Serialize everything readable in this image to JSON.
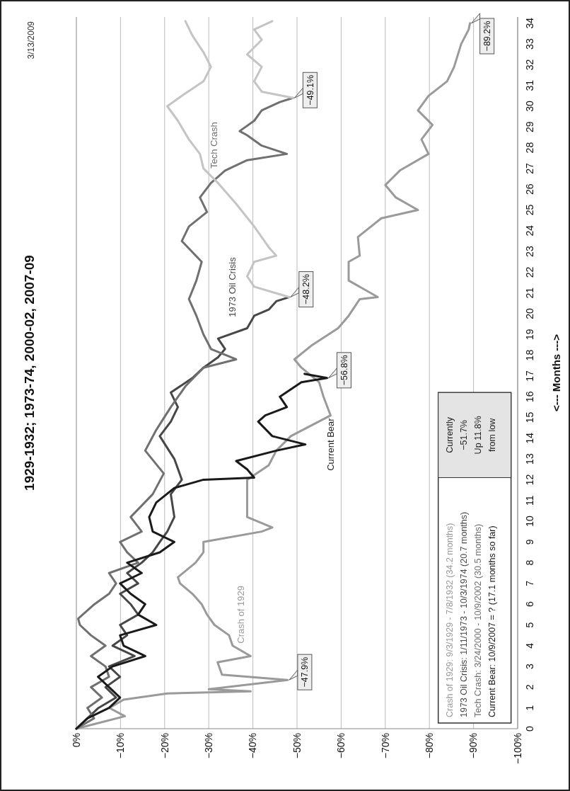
{
  "chart_data": {
    "type": "line",
    "title": "1929-1932; 1973-74, 2000-02, 2007-09",
    "ylabel": "<--- Months --->",
    "ylim": [
      0,
      34.3
    ],
    "yticks": [
      0,
      1,
      2,
      3,
      4,
      5,
      6,
      7,
      8,
      9,
      10,
      11,
      12,
      13,
      14,
      15,
      16,
      17,
      18,
      19,
      20,
      21,
      22,
      23,
      24,
      25,
      26,
      27,
      28,
      29,
      30,
      31,
      32,
      33,
      34
    ],
    "xlim": [
      0,
      -100
    ],
    "xticks": [
      {
        "value": 0,
        "label": "0%"
      },
      {
        "value": -10,
        "label": "−10%"
      },
      {
        "value": -20,
        "label": "−20%"
      },
      {
        "value": -30,
        "label": "−30%"
      },
      {
        "value": -40,
        "label": "−40%"
      },
      {
        "value": -50,
        "label": "−50%"
      },
      {
        "value": -60,
        "label": "−60%"
      },
      {
        "value": -70,
        "label": "−70%"
      },
      {
        "value": -80,
        "label": "−80%"
      },
      {
        "value": -90,
        "label": "−90%"
      },
      {
        "value": -100,
        "label": "−100%"
      }
    ],
    "grid": "x",
    "legend": false,
    "marker": "none",
    "line_style": "solid",
    "series": [
      {
        "name": "Crash of 1929",
        "color": "#9a9a9a",
        "values": [
          0,
          0.6,
          1,
          1.4,
          1.7,
          1.8,
          1.9,
          2.35,
          2.6,
          3.2,
          3.5,
          4,
          4.5,
          5,
          5.5,
          6,
          6.5,
          7,
          7.3,
          8,
          8.5,
          9,
          9.5,
          9.7,
          10.2,
          12,
          12.7,
          13.4,
          14.1,
          15.1,
          16,
          16.7,
          17.4,
          17.8,
          18.5,
          19.3,
          19.9,
          20.7,
          20.8,
          21.6,
          22.5,
          22.8,
          23.7,
          24.6,
          25,
          25.6,
          26.2,
          26.9,
          27.7,
          28.4,
          29.1,
          29.8,
          30.5,
          31.2,
          31.9,
          33,
          33.7,
          34
        ],
        "x": [
          0,
          -11,
          -7.5,
          -10.7,
          -20.6,
          -39.5,
          -30,
          -47.9,
          -33,
          -32,
          -39.5,
          -35.4,
          -34.6,
          -31.3,
          -29.6,
          -28.4,
          -26.3,
          -23.5,
          -23,
          -27,
          -28.8,
          -28.8,
          -42,
          -44.4,
          -38.7,
          -38.7,
          -43.6,
          -45.3,
          -48.6,
          -57.6,
          -56,
          -55,
          -51,
          -49.4,
          -53.5,
          -59.3,
          -61.7,
          -64.2,
          -68.3,
          -61.7,
          -61.7,
          -64.2,
          -63.8,
          -69.1,
          -77.4,
          -72.4,
          -70,
          -73.3,
          -79.8,
          -78.2,
          -80.7,
          -77.4,
          -79.8,
          -84,
          -85.6,
          -87.2,
          -88.9,
          -89.2
        ]
      },
      {
        "name": "1973 Oil Crisis",
        "color": "#474747",
        "values": [
          0,
          0.5,
          1,
          1.5,
          2,
          2.5,
          3,
          3.5,
          4,
          4.5,
          5,
          5.5,
          6,
          6.5,
          7,
          7.5,
          8,
          8.5,
          9,
          9.5,
          10.2,
          11.3,
          12,
          13,
          14.1,
          14.8,
          15.5,
          16.2,
          16.9,
          17.4,
          17.9,
          18.3,
          18.8,
          19.3,
          19.9,
          20.2,
          20.6,
          20.8
        ],
        "x": [
          0,
          -2.5,
          -5,
          -9,
          -6.6,
          -9.9,
          -7.4,
          -13.2,
          -8.2,
          -11.5,
          -9.9,
          -14,
          -12.3,
          -9.9,
          -14,
          -11.5,
          -14.8,
          -17.3,
          -18.9,
          -20.6,
          -22.2,
          -21.4,
          -23.9,
          -22.2,
          -18.9,
          -21.4,
          -23,
          -21.4,
          -26.3,
          -28.8,
          -32.1,
          -33.7,
          -32.1,
          -38.7,
          -40.3,
          -43.6,
          -45.3,
          -48.2
        ]
      },
      {
        "name": "Tech Crash",
        "color": "#707070",
        "values": [
          0,
          0.5,
          1,
          1.5,
          2,
          2.5,
          3,
          3.5,
          4,
          4.5,
          5,
          5.3,
          6,
          6.5,
          7,
          7.5,
          8,
          8.5,
          9,
          9.5,
          10.2,
          11.3,
          12.3,
          13.4,
          14.4,
          15.5,
          16.5,
          17.4,
          17.8,
          18.3,
          19,
          19.9,
          20.7,
          21.6,
          22.5,
          23.5,
          24.2,
          24.9,
          25.6,
          26.3,
          26.9,
          27.4,
          27.7,
          28.1,
          28.6,
          28.8,
          29.3,
          29.8,
          30.2,
          30.4
        ],
        "x": [
          0,
          -4,
          -2.5,
          -5.8,
          -3.3,
          -7.4,
          -6.6,
          -3.3,
          -6.6,
          -3.3,
          -0.8,
          -0.4,
          -4.1,
          -7.4,
          -9,
          -7.4,
          -14,
          -11.5,
          -9.9,
          -14.8,
          -12.3,
          -17.3,
          -19.8,
          -15.6,
          -18.1,
          -21.4,
          -24.7,
          -28.8,
          -36.2,
          -30.5,
          -28.8,
          -27.2,
          -25.5,
          -27.2,
          -28.4,
          -23.9,
          -25.5,
          -29.6,
          -28,
          -30.5,
          -33.7,
          -38.7,
          -47.7,
          -42,
          -38.7,
          -37,
          -40.3,
          -42,
          -46.1,
          -49.1
        ]
      },
      {
        "name": "Current Bear",
        "color": "#1a1a1a",
        "values": [
          0,
          0.5,
          1,
          1.5,
          2,
          2.5,
          3,
          3.5,
          4,
          4.5,
          5,
          5.5,
          6,
          6.5,
          7,
          7.5,
          8,
          8.5,
          9,
          9.5,
          10.2,
          10.9,
          11.6,
          12,
          12.1,
          12.5,
          12.9,
          13.4,
          13.7,
          14.1,
          14.8,
          15.1,
          15.5,
          16,
          16.7,
          16.9,
          17.1
        ],
        "x": [
          0,
          -2.5,
          -7.4,
          -9.9,
          -7.4,
          -4.9,
          -8.2,
          -15.6,
          -10.7,
          -9.9,
          -18.1,
          -14,
          -15.6,
          -12.3,
          -9.9,
          -14.8,
          -11.5,
          -18.9,
          -22.2,
          -17.3,
          -16.5,
          -18.1,
          -22.2,
          -28.8,
          -40.3,
          -38.7,
          -36.2,
          -45.3,
          -51.9,
          -44.4,
          -41.2,
          -42.8,
          -47.7,
          -46.1,
          -51,
          -56.8,
          -51.7
        ]
      },
      {
        "color": "#c4c4c4",
        "values": [
          20.8,
          21.3,
          21.8,
          22.5,
          22.8,
          23.2,
          24.2,
          25.3,
          26.3,
          27,
          27.7,
          28.4,
          29.3,
          30,
          30.5,
          31.2,
          31.9,
          32.6,
          33.4,
          34.1
        ],
        "x": [
          -48.2,
          -40.3,
          -38.7,
          -40.3,
          -45.3,
          -43.6,
          -40.3,
          -36.2,
          -32.1,
          -28.8,
          -28,
          -25.5,
          -23,
          -20.6,
          -23.9,
          -28.8,
          -30.5,
          -28.8,
          -26.3,
          -24.7
        ]
      },
      {
        "color": "#c4c4c4",
        "values": [
          30.4,
          30.7,
          31.2,
          31.9,
          32.5,
          33.2,
          33.7,
          34.1
        ],
        "x": [
          -49.1,
          -42,
          -40.3,
          -42,
          -38.7,
          -42,
          -40.3,
          -44.4
        ]
      }
    ],
    "annotations": [
      "3/13/2009",
      "Crash of 1929: 9/3/1929 - 7/8/1932 (34.2 months)",
      "1973 Oil Crisis: 1/11/1973 - 10/3/1974 (20.7 months)",
      "Tech Crash: 3/24/2000 - 10/9/2002 (30.5 months)",
      "Current Bear: 10/9/2007 = ? (17.1 months so far)",
      "Currently",
      "−51.7%",
      "Up 11.8%",
      "from low",
      {
        "text": "−47.9%",
        "x": -47.9,
        "y": 2.35
      },
      {
        "text": "−56.8%",
        "x": -56.8,
        "y": 16.9
      },
      {
        "text": "−48.2%",
        "x": -48.2,
        "y": 20.8
      },
      {
        "text": "−49.1%",
        "x": -49.1,
        "y": 30.4
      },
      {
        "text": "−89.2%",
        "x": -89.2,
        "y": 34
      }
    ]
  }
}
